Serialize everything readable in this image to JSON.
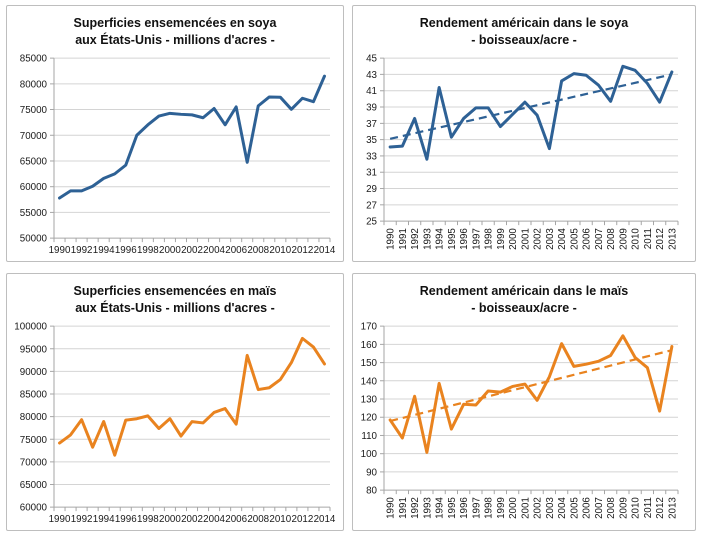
{
  "style": {
    "grid_color": "#d4d4d4",
    "axis_color": "#a6a6a6",
    "panel_border_color": "#bebebe",
    "soy_color": "#2e6195",
    "corn_color": "#e9831f"
  },
  "chart_data": [
    {
      "id": "soy-area",
      "type": "line",
      "title_line1": "Superficies ensemencées en soya",
      "title_line2": "aux États-Unis - millions d'acres -",
      "xlabel": "",
      "ylabel": "",
      "legend": "none",
      "grid": true,
      "color": "#2e6195",
      "x": [
        1990,
        1991,
        1992,
        1993,
        1994,
        1995,
        1996,
        1997,
        1998,
        1999,
        2000,
        2001,
        2002,
        2003,
        2004,
        2005,
        2006,
        2007,
        2008,
        2009,
        2010,
        2011,
        2012,
        2013,
        2014
      ],
      "values": [
        57800,
        59180,
        59180,
        60085,
        61620,
        62495,
        64195,
        70005,
        72025,
        73730,
        74266,
        74075,
        73963,
        73404,
        75208,
        72032,
        75522,
        64741,
        75718,
        77451,
        77404,
        75046,
        77198,
        76533,
        81500
      ],
      "ylim": [
        50000,
        85000
      ],
      "yticks": [
        50000,
        55000,
        60000,
        65000,
        70000,
        75000,
        80000,
        85000
      ],
      "xlabel_every": 2,
      "rotate_x_labels": false,
      "trend": null
    },
    {
      "id": "soy-yield",
      "type": "line",
      "title_line1": "Rendement américain dans le soya",
      "title_line2": "- boisseaux/acre -",
      "xlabel": "",
      "ylabel": "",
      "legend": "none",
      "grid": true,
      "color": "#2e6195",
      "x": [
        1990,
        1991,
        1992,
        1993,
        1994,
        1995,
        1996,
        1997,
        1998,
        1999,
        2000,
        2001,
        2002,
        2003,
        2004,
        2005,
        2006,
        2007,
        2008,
        2009,
        2010,
        2011,
        2012,
        2013
      ],
      "values": [
        34.1,
        34.2,
        37.6,
        32.6,
        41.4,
        35.3,
        37.6,
        38.9,
        38.9,
        36.6,
        38.1,
        39.6,
        38.0,
        33.9,
        42.2,
        43.1,
        42.9,
        41.7,
        39.7,
        44.0,
        43.5,
        41.9,
        39.6,
        43.3
      ],
      "ylim": [
        25,
        45
      ],
      "yticks": [
        25,
        27,
        29,
        31,
        33,
        35,
        37,
        39,
        41,
        43,
        45
      ],
      "xlabel_every": 1,
      "rotate_x_labels": true,
      "trend": {
        "y_start": 35.1,
        "y_end": 43.0
      }
    },
    {
      "id": "corn-area",
      "type": "line",
      "title_line1": "Superficies ensemencées en maïs",
      "title_line2": "aux États-Unis - millions d'acres -",
      "xlabel": "",
      "ylabel": "",
      "legend": "none",
      "grid": true,
      "color": "#e9831f",
      "x": [
        1990,
        1991,
        1992,
        1993,
        1994,
        1995,
        1996,
        1997,
        1998,
        1999,
        2000,
        2001,
        2002,
        2003,
        2004,
        2005,
        2006,
        2007,
        2008,
        2009,
        2010,
        2011,
        2012,
        2013,
        2014
      ],
      "values": [
        74166,
        75957,
        79311,
        73239,
        78921,
        71479,
        79229,
        79537,
        80165,
        77386,
        79551,
        75702,
        78894,
        78603,
        80929,
        81779,
        78327,
        93527,
        85982,
        86382,
        88192,
        91936,
        97291,
        95365,
        91641
      ],
      "ylim": [
        60000,
        100000
      ],
      "yticks": [
        60000,
        65000,
        70000,
        75000,
        80000,
        85000,
        90000,
        95000,
        100000
      ],
      "xlabel_every": 2,
      "rotate_x_labels": false,
      "trend": null
    },
    {
      "id": "corn-yield",
      "type": "line",
      "title_line1": "Rendement américain dans le maïs",
      "title_line2": "- boisseaux/acre -",
      "xlabel": "",
      "ylabel": "",
      "legend": "none",
      "grid": true,
      "color": "#e9831f",
      "x": [
        1990,
        1991,
        1992,
        1993,
        1994,
        1995,
        1996,
        1997,
        1998,
        1999,
        2000,
        2001,
        2002,
        2003,
        2004,
        2005,
        2006,
        2007,
        2008,
        2009,
        2010,
        2011,
        2012,
        2013
      ],
      "values": [
        118.5,
        108.6,
        131.5,
        100.7,
        138.6,
        113.5,
        127.1,
        126.7,
        134.4,
        133.8,
        136.9,
        138.2,
        129.3,
        142.2,
        160.4,
        147.9,
        149.1,
        150.7,
        153.9,
        164.7,
        152.8,
        147.2,
        123.4,
        158.8
      ],
      "ylim": [
        80,
        170
      ],
      "yticks": [
        80,
        90,
        100,
        110,
        120,
        130,
        140,
        150,
        160,
        170
      ],
      "xlabel_every": 1,
      "rotate_x_labels": true,
      "trend": {
        "y_start": 117.9,
        "y_end": 156.8
      }
    }
  ]
}
